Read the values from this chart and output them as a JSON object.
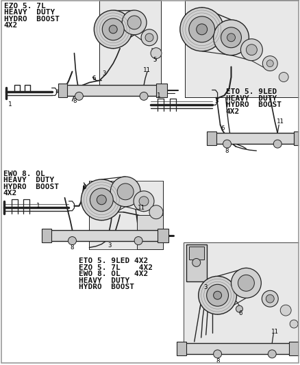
{
  "background_color": "#ffffff",
  "text_color": "#111111",
  "labels": {
    "top_left": [
      "EZO 5. 7L",
      "HEAVY  DUTY",
      "HYDRO  BOOST",
      "4X2"
    ],
    "top_right": [
      "ETO 5. 9LED",
      "HEAVY  DUTY",
      "HYDRO  BOOST",
      "4X2"
    ],
    "mid_left": [
      "EWO 8. OL",
      "HEAVY  DUTY",
      "HYDRO  BOOST",
      "4X2"
    ],
    "bottom_center": [
      "ETO 5. 9LED 4X2",
      "EZO 5. 7L    4X2",
      "EWO 8. OL   4X2",
      "HEAVY  DUTY",
      "HYDRO  BOOST"
    ]
  },
  "font_size_label": 8.0,
  "font_size_num": 6.5,
  "line_color": "#222222",
  "light_gray": "#c8c8c8",
  "mid_gray": "#999999",
  "dark_gray": "#555555"
}
